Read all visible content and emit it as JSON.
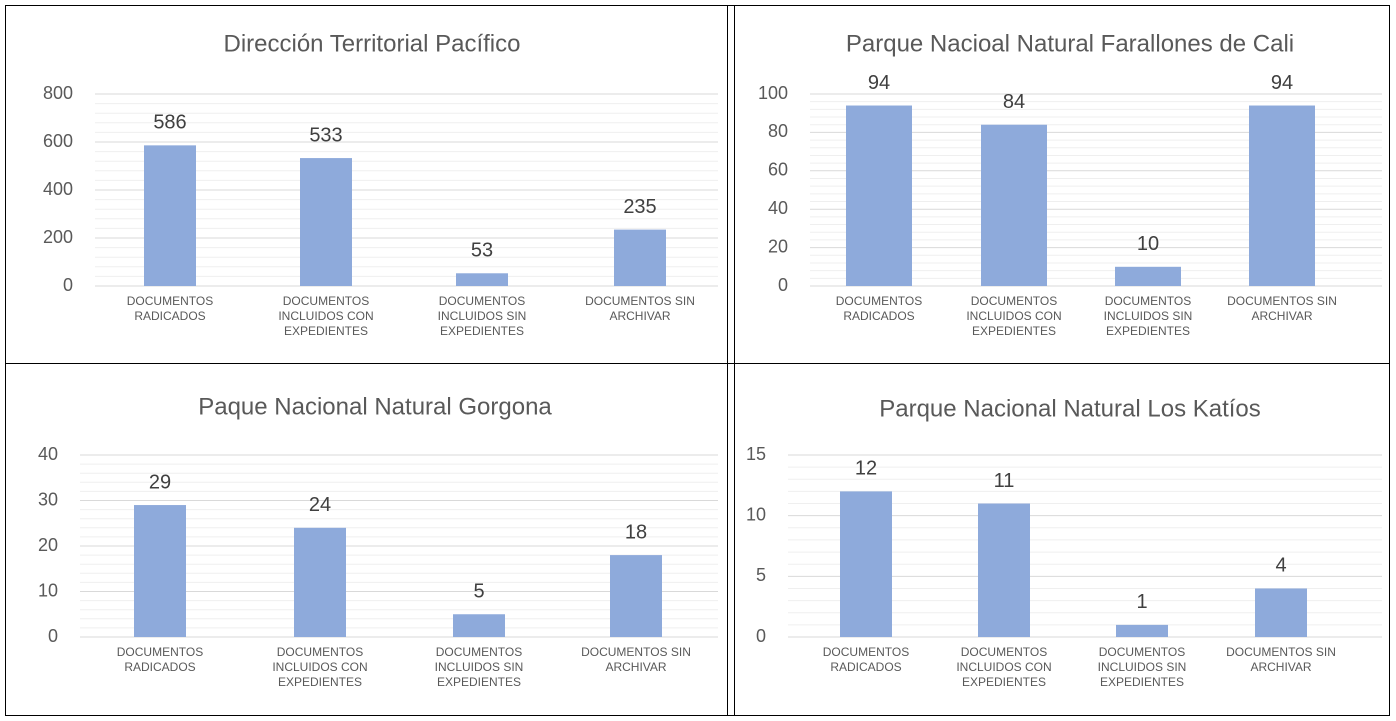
{
  "chart_data": [
    {
      "type": "bar",
      "title": "Dirección Territorial Pacífico",
      "categories": [
        "DOCUMENTOS RADICADOS",
        "DOCUMENTOS INCLUIDOS CON EXPEDIENTES",
        "DOCUMENTOS INCLUIDOS SIN EXPEDIENTES",
        "DOCUMENTOS SIN ARCHIVAR"
      ],
      "values": [
        586,
        533,
        53,
        235
      ],
      "color": "#8eaadb",
      "ylim": [
        0,
        800
      ],
      "yticks": [
        0,
        200,
        400,
        600,
        800
      ],
      "grid": true
    },
    {
      "type": "bar",
      "title": "Parque Nacioal Natural Farallones de Cali",
      "categories": [
        "DOCUMENTOS RADICADOS",
        "DOCUMENTOS INCLUIDOS CON EXPEDIENTES",
        "DOCUMENTOS INCLUIDOS SIN EXPEDIENTES",
        "DOCUMENTOS SIN ARCHIVAR"
      ],
      "values": [
        94,
        84,
        10,
        94
      ],
      "color": "#8eaadb",
      "ylim": [
        0,
        100
      ],
      "yticks": [
        0,
        20,
        40,
        60,
        80,
        100
      ],
      "grid": true
    },
    {
      "type": "bar",
      "title": "Paque Nacional Natural Gorgona",
      "categories": [
        "DOCUMENTOS RADICADOS",
        "DOCUMENTOS INCLUIDOS CON EXPEDIENTES",
        "DOCUMENTOS INCLUIDOS SIN EXPEDIENTES",
        "DOCUMENTOS SIN ARCHIVAR"
      ],
      "values": [
        29,
        24,
        5,
        18
      ],
      "color": "#8eaadb",
      "ylim": [
        0,
        40
      ],
      "yticks": [
        0,
        10,
        20,
        30,
        40
      ],
      "grid": true
    },
    {
      "type": "bar",
      "title": "Parque Nacional Natural Los Katíos",
      "categories": [
        "DOCUMENTOS RADICADOS",
        "DOCUMENTOS INCLUIDOS CON EXPEDIENTES",
        "DOCUMENTOS INCLUIDOS SIN EXPEDIENTES",
        "DOCUMENTOS SIN ARCHIVAR"
      ],
      "values": [
        12,
        11,
        1,
        4
      ],
      "color": "#8eaadb",
      "ylim": [
        0,
        15
      ],
      "yticks": [
        0,
        5,
        10,
        15
      ],
      "grid": true
    }
  ]
}
